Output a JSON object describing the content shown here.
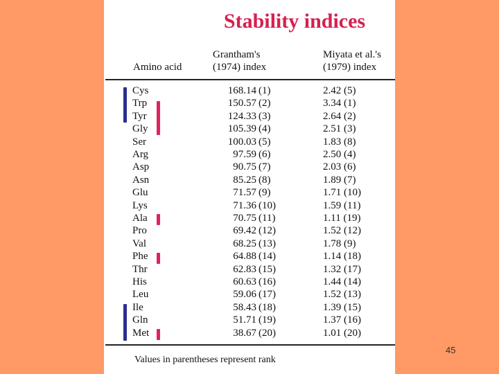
{
  "title": "Stability indices",
  "headers": {
    "col1": "Amino acid",
    "col2_line1": "Grantham's",
    "col2_line2": "(1974) index",
    "col3_line1": "Miyata et al.'s",
    "col3_line2": "(1979) index"
  },
  "rows": [
    {
      "aa": "Cys",
      "g": "168.14",
      "gr": "(1)",
      "m": "2.42 (5)"
    },
    {
      "aa": "Trp",
      "g": "150.57",
      "gr": "(2)",
      "m": "3.34 (1)"
    },
    {
      "aa": "Tyr",
      "g": "124.33",
      "gr": "(3)",
      "m": "2.64 (2)"
    },
    {
      "aa": "Gly",
      "g": "105.39",
      "gr": "(4)",
      "m": "2.51 (3)"
    },
    {
      "aa": "Ser",
      "g": "100.03",
      "gr": "(5)",
      "m": "1.83 (8)"
    },
    {
      "aa": "Arg",
      "g": "97.59",
      "gr": "(6)",
      "m": "2.50 (4)"
    },
    {
      "aa": "Asp",
      "g": "90.75",
      "gr": "(7)",
      "m": "2.03 (6)"
    },
    {
      "aa": "Asn",
      "g": "85.25",
      "gr": "(8)",
      "m": "1.89 (7)"
    },
    {
      "aa": "Glu",
      "g": "71.57",
      "gr": "(9)",
      "m": "1.71 (10)"
    },
    {
      "aa": "Lys",
      "g": "71.36",
      "gr": "(10)",
      "m": "1.59 (11)"
    },
    {
      "aa": "Ala",
      "g": "70.75",
      "gr": "(11)",
      "m": "1.11 (19)"
    },
    {
      "aa": "Pro",
      "g": "69.42",
      "gr": "(12)",
      "m": "1.52 (12)"
    },
    {
      "aa": "Val",
      "g": "68.25",
      "gr": "(13)",
      "m": "1.78 (9)"
    },
    {
      "aa": "Phe",
      "g": "64.88",
      "gr": "(14)",
      "m": "1.14 (18)"
    },
    {
      "aa": "Thr",
      "g": "62.83",
      "gr": "(15)",
      "m": "1.32 (17)"
    },
    {
      "aa": "His",
      "g": "60.63",
      "gr": "(16)",
      "m": "1.44 (14)"
    },
    {
      "aa": "Leu",
      "g": "59.06",
      "gr": "(17)",
      "m": "1.52 (13)"
    },
    {
      "aa": "Ile",
      "g": "58.43",
      "gr": "(18)",
      "m": "1.39 (15)"
    },
    {
      "aa": "Gln",
      "g": "51.71",
      "gr": "(19)",
      "m": "1.37 (16)"
    },
    {
      "aa": "Met",
      "g": "38.67",
      "gr": "(20)",
      "m": "1.01 (20)"
    }
  ],
  "markers": {
    "blue_color": "#2b2f8f",
    "red_color": "#e0235a"
  },
  "footer": "Values in parentheses represent rank",
  "page_number": "45"
}
